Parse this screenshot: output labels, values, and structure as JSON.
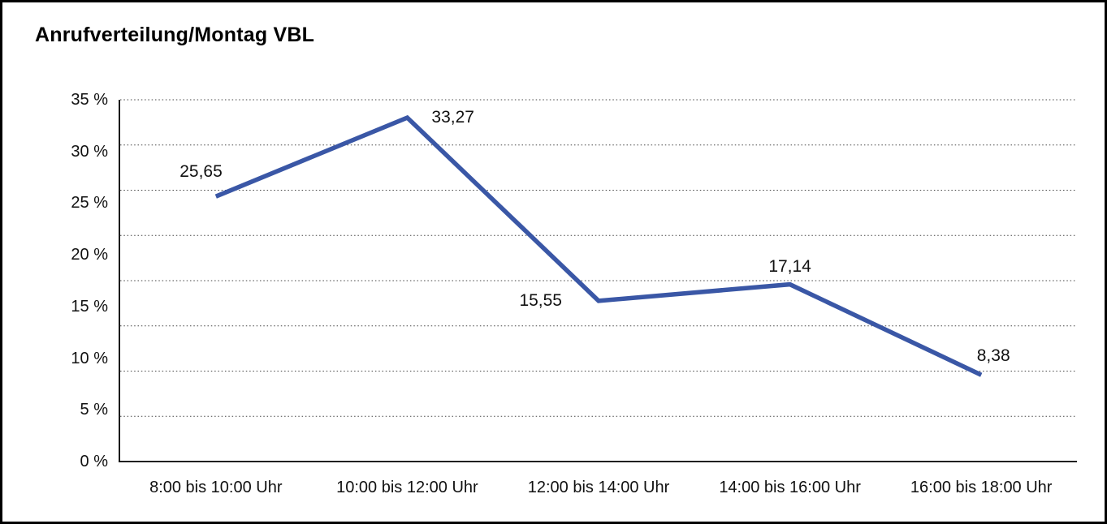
{
  "window": {
    "background": "#ffffff",
    "border_color": "#000000"
  },
  "title": "Anrufverteilung/Montag VBL",
  "chart_data": {
    "type": "line",
    "title": "Anrufverteilung/Montag VBL",
    "categories": [
      "8:00 bis 10:00 Uhr",
      "10:00 bis 12:00 Uhr",
      "12:00 bis 14:00 Uhr",
      "14:00 bis 16:00 Uhr",
      "16:00 bis 18:00 Uhr"
    ],
    "values": [
      25.65,
      33.27,
      15.55,
      17.14,
      8.38
    ],
    "value_labels": [
      "25,65",
      "33,27",
      "15,55",
      "17,14",
      "8,38"
    ],
    "value_label_placements": [
      "above-left",
      "right",
      "left",
      "above",
      "above-right"
    ],
    "xlabel": "",
    "ylabel": "",
    "ylim": [
      0,
      35
    ],
    "ytick_values": [
      0,
      5,
      10,
      15,
      20,
      25,
      30,
      35
    ],
    "ytick_labels": [
      "0 %",
      "5 %",
      "10 %",
      "15 %",
      "20 %",
      "25 %",
      "30 %",
      "35 %"
    ],
    "grid": "horizontal-dotted",
    "gridline_count": 9,
    "legend": "none",
    "line_color": "#3A57A6",
    "axis_color": "#000000",
    "gridline_color": "#444444"
  }
}
